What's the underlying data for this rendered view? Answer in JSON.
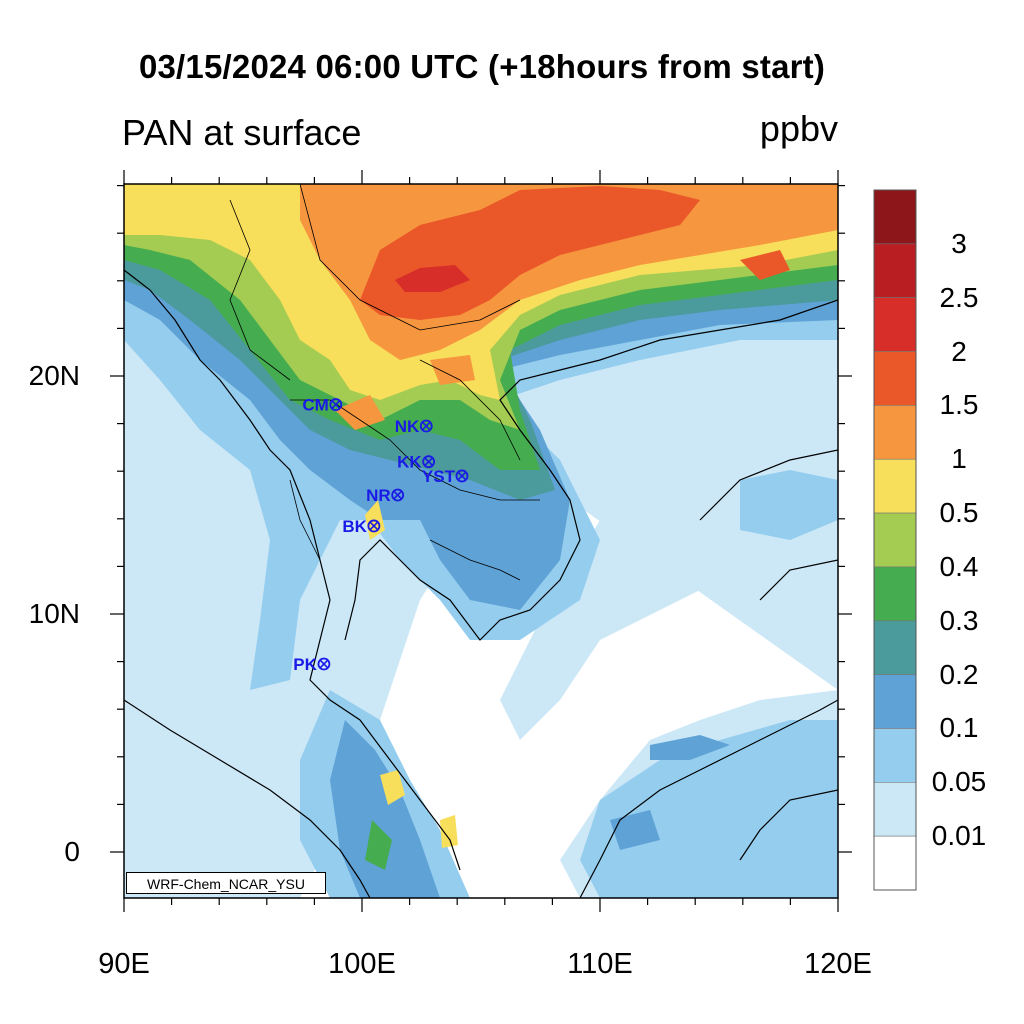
{
  "title": "03/15/2024 06:00 UTC (+18hours from start)",
  "subtitle": "PAN at surface",
  "units": "ppbv",
  "credit": "WRF-Chem_NCAR_YSU",
  "lat_ticks": [
    {
      "label": "20N",
      "lat": 20
    },
    {
      "label": "10N",
      "lat": 10
    },
    {
      "label": "0",
      "lat": 0
    }
  ],
  "lon_ticks": [
    {
      "label": "90E",
      "lon": 90
    },
    {
      "label": "100E",
      "lon": 100
    },
    {
      "label": "110E",
      "lon": 110
    },
    {
      "label": "120E",
      "lon": 120
    }
  ],
  "colorbar": {
    "levels": [
      "0.01",
      "0.05",
      "0.1",
      "0.2",
      "0.3",
      "0.4",
      "0.5",
      "1",
      "1.5",
      "2",
      "2.5",
      "3"
    ],
    "colors": [
      "#ffffff",
      "#cce8f7",
      "#94cdee",
      "#5fa2d6",
      "#4b9a9c",
      "#45ac4f",
      "#a4cc52",
      "#f7de5b",
      "#f6963f",
      "#ea5728",
      "#d72e2a",
      "#b81e22",
      "#8c161a"
    ]
  },
  "stations": [
    {
      "label": "CM",
      "lon": 98.9,
      "lat": 18.8
    },
    {
      "label": "NK",
      "lon": 102.7,
      "lat": 17.9
    },
    {
      "label": "KK",
      "lon": 102.8,
      "lat": 16.4
    },
    {
      "label": "YST",
      "lon": 104.2,
      "lat": 15.8
    },
    {
      "label": "NR",
      "lon": 101.5,
      "lat": 15.0
    },
    {
      "label": "BK",
      "lon": 100.5,
      "lat": 13.7
    },
    {
      "label": "PK",
      "lon": 98.4,
      "lat": 7.9
    }
  ]
}
